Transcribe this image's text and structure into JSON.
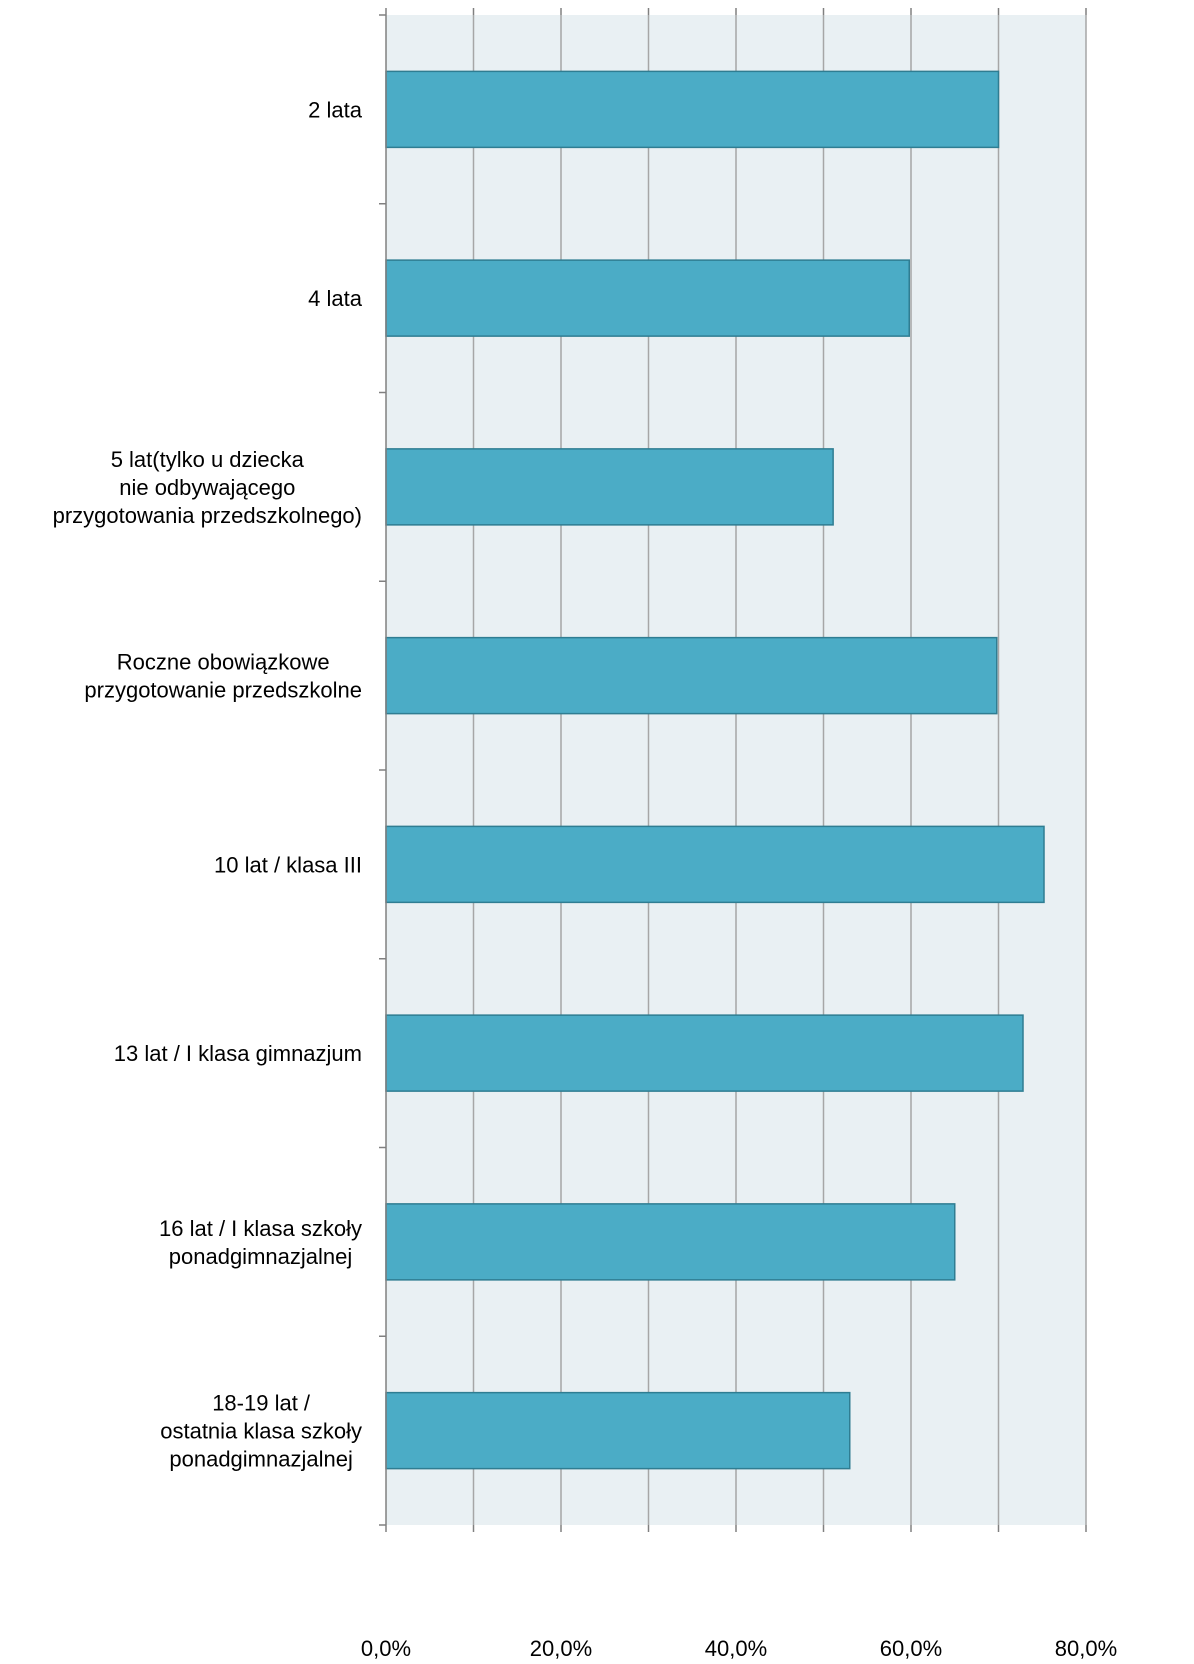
{
  "chart_data": {
    "type": "bar",
    "orientation": "horizontal",
    "categories": [
      [
        "2 lata"
      ],
      [
        "4 lata"
      ],
      [
        "5 lat(tylko u dziecka",
        "nie odbywającego",
        "przygotowania przedszkolnego)"
      ],
      [
        "Roczne obowiązkowe",
        "przygotowanie przedszkolne"
      ],
      [
        "10 lat / klasa III"
      ],
      [
        "13 lat / I klasa gimnazjum"
      ],
      [
        "16 lat / I klasa szkoły",
        "ponadgimnazjalnej"
      ],
      [
        "18-19 lat /",
        "ostatnia klasa szkoły",
        "ponadgimnazjalnej"
      ]
    ],
    "values": [
      70.0,
      59.8,
      51.1,
      69.8,
      75.2,
      72.8,
      65.0,
      53.0
    ],
    "xlim": [
      0,
      80
    ],
    "x_ticks": [
      "0,0%",
      "20,0%",
      "40,0%",
      "60,0%",
      "80,0%"
    ],
    "minor_grid_step": 10,
    "grid": true,
    "colors": {
      "bar_fill": "#4bacc6",
      "bar_stroke": "#2f7d92",
      "plot_background": "#e9f0f3",
      "gridline": "#a6a6a6",
      "axis": "#808080"
    }
  }
}
